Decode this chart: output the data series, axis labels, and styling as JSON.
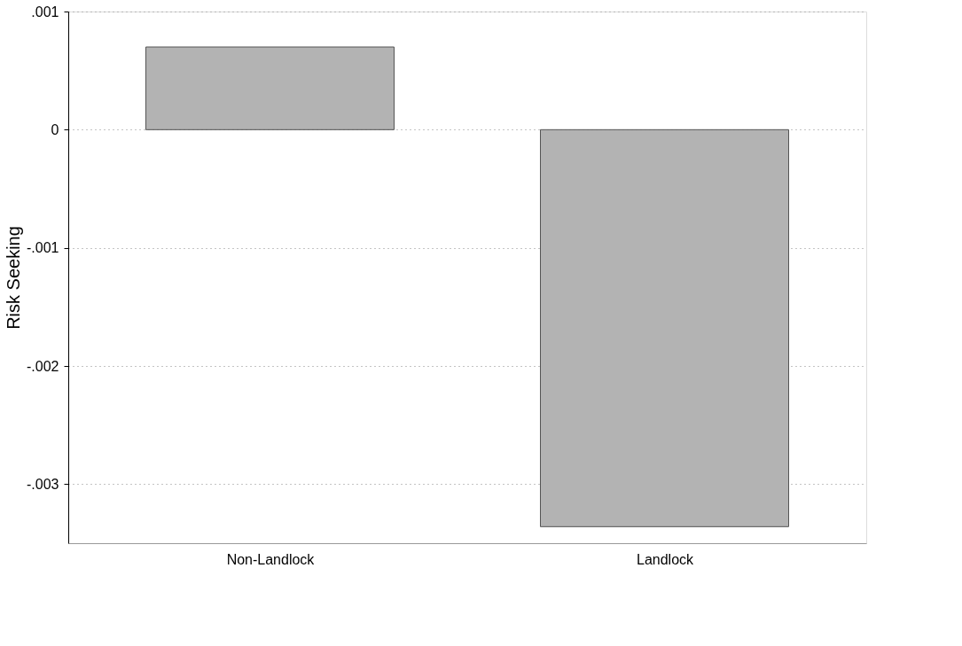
{
  "chart_data": {
    "type": "bar",
    "ylabel": "Risk Seeking",
    "categories": [
      "Non-Landlock",
      "Landlock"
    ],
    "values": [
      0.0007,
      -0.00336
    ],
    "color": "#b3b3b3",
    "ylim": [
      -0.0035,
      0.001
    ],
    "yticks": [
      {
        "value": 0.001,
        "label": ".001"
      },
      {
        "value": 0,
        "label": "0"
      },
      {
        "value": -0.001,
        "label": "-.001"
      },
      {
        "value": -0.002,
        "label": "-.002"
      },
      {
        "value": -0.003,
        "label": "-.003"
      }
    ],
    "grid": "y"
  }
}
